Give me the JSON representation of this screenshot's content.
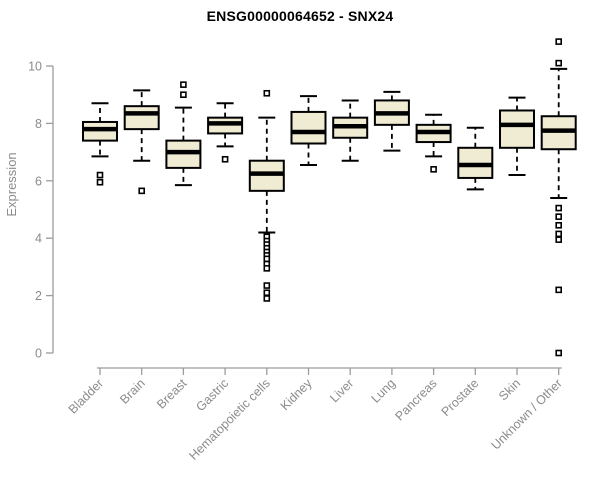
{
  "title": "ENSG00000064652 - SNX24",
  "colors": {
    "background": "#FFFFFF",
    "box_fill": "#F0ECD4",
    "box_border": "#000000",
    "median_line": "#000000",
    "whisker": "#000000",
    "outlier_fill": "#FFFFFF",
    "axis_line": "#9C9C9C",
    "axis_text": "#8B8B8B",
    "title_text": "#000000"
  },
  "chart_data": {
    "type": "boxplot",
    "title": "ENSG00000064652 - SNX24",
    "xlabel": "",
    "ylabel": "Expression",
    "ylim": [
      0,
      10
    ],
    "yticks": [
      0,
      2,
      4,
      6,
      8,
      10
    ],
    "grid": false,
    "legend": "none",
    "categories": [
      "Bladder",
      "Brain",
      "Breast",
      "Gastric",
      "Hematopoietic cells",
      "Kidney",
      "Liver",
      "Lung",
      "Pancreas",
      "Prostate",
      "Skin",
      "Unknown / Other"
    ],
    "series": [
      {
        "category": "Bladder",
        "whisker_low": 6.85,
        "q1": 7.4,
        "median": 7.8,
        "q3": 8.05,
        "whisker_high": 8.7,
        "outliers": [
          6.2,
          5.95
        ]
      },
      {
        "category": "Brain",
        "whisker_low": 6.7,
        "q1": 7.8,
        "median": 8.35,
        "q3": 8.6,
        "whisker_high": 9.15,
        "outliers": [
          5.65
        ]
      },
      {
        "category": "Breast",
        "whisker_low": 5.85,
        "q1": 6.45,
        "median": 7.0,
        "q3": 7.4,
        "whisker_high": 8.55,
        "outliers": [
          9.35,
          9.0
        ]
      },
      {
        "category": "Gastric",
        "whisker_low": 7.2,
        "q1": 7.65,
        "median": 8.0,
        "q3": 8.2,
        "whisker_high": 8.7,
        "outliers": [
          6.75
        ]
      },
      {
        "category": "Hematopoietic cells",
        "whisker_low": 4.2,
        "q1": 5.65,
        "median": 6.25,
        "q3": 6.7,
        "whisker_high": 8.2,
        "outliers": [
          9.05,
          4.05,
          3.9,
          3.78,
          3.65,
          3.52,
          3.4,
          3.28,
          3.1,
          2.95,
          2.35,
          2.1,
          1.9
        ]
      },
      {
        "category": "Kidney",
        "whisker_low": 6.55,
        "q1": 7.3,
        "median": 7.7,
        "q3": 8.4,
        "whisker_high": 8.95,
        "outliers": []
      },
      {
        "category": "Liver",
        "whisker_low": 6.7,
        "q1": 7.5,
        "median": 7.9,
        "q3": 8.2,
        "whisker_high": 8.8,
        "outliers": []
      },
      {
        "category": "Lung",
        "whisker_low": 7.05,
        "q1": 7.95,
        "median": 8.35,
        "q3": 8.8,
        "whisker_high": 9.1,
        "outliers": []
      },
      {
        "category": "Pancreas",
        "whisker_low": 6.85,
        "q1": 7.35,
        "median": 7.7,
        "q3": 7.95,
        "whisker_high": 8.3,
        "outliers": [
          6.4
        ]
      },
      {
        "category": "Prostate",
        "whisker_low": 5.7,
        "q1": 6.1,
        "median": 6.55,
        "q3": 7.15,
        "whisker_high": 7.85,
        "outliers": []
      },
      {
        "category": "Skin",
        "whisker_low": 6.2,
        "q1": 7.15,
        "median": 7.95,
        "q3": 8.45,
        "whisker_high": 8.9,
        "outliers": []
      },
      {
        "category": "Unknown / Other",
        "whisker_low": 5.4,
        "q1": 7.1,
        "median": 7.75,
        "q3": 8.25,
        "whisker_high": 9.9,
        "outliers": [
          10.85,
          10.1,
          5.05,
          4.75,
          4.45,
          4.15,
          3.95,
          2.2,
          0.0
        ]
      }
    ]
  }
}
